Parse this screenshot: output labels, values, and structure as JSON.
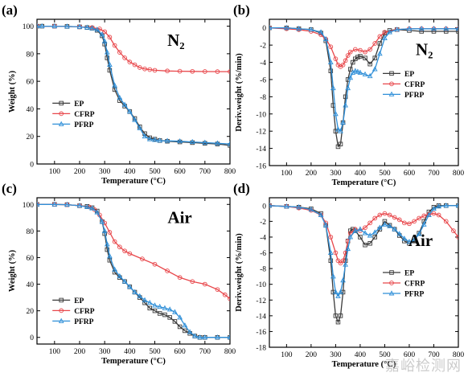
{
  "watermark": "嘉峪检测网",
  "chart_data": [
    {
      "type": "line",
      "panel": "(a)",
      "annotation": "N₂",
      "xlabel": "Temperature (°C)",
      "ylabel": "Weight (%)",
      "xlim": [
        30,
        800
      ],
      "ylim": [
        0,
        105
      ],
      "xticks": [
        100,
        200,
        300,
        400,
        500,
        600,
        700,
        800
      ],
      "yticks": [
        0,
        20,
        40,
        60,
        80,
        100
      ],
      "legend_position": "left",
      "series": [
        {
          "name": "EP",
          "color": "#3a3a3a",
          "marker": "square",
          "x": [
            30,
            50,
            100,
            150,
            200,
            230,
            250,
            270,
            290,
            300,
            310,
            320,
            340,
            360,
            380,
            400,
            420,
            440,
            460,
            480,
            500,
            520,
            550,
            600,
            650,
            700,
            750,
            800
          ],
          "y": [
            100,
            100,
            100,
            99.8,
            99.5,
            99,
            98.5,
            97,
            93,
            87,
            77,
            68,
            54,
            46,
            42,
            38,
            33,
            27,
            22,
            19,
            18,
            17,
            16.5,
            16,
            15.5,
            15,
            14.5,
            13.5
          ]
        },
        {
          "name": "CFRP",
          "color": "#e8474b",
          "marker": "circle",
          "x": [
            30,
            100,
            200,
            250,
            280,
            300,
            320,
            340,
            360,
            380,
            400,
            420,
            440,
            460,
            480,
            500,
            550,
            600,
            650,
            700,
            750,
            800
          ],
          "y": [
            100,
            100,
            99.5,
            99,
            98,
            96,
            92,
            86,
            81,
            77,
            74,
            72,
            70,
            69,
            68.5,
            68,
            67.5,
            67.3,
            67.2,
            67.1,
            67,
            67
          ]
        },
        {
          "name": "PFRP",
          "color": "#2f8fd8",
          "marker": "triangle",
          "x": [
            30,
            50,
            100,
            150,
            200,
            230,
            250,
            270,
            290,
            300,
            310,
            320,
            340,
            360,
            380,
            400,
            420,
            440,
            460,
            480,
            500,
            520,
            550,
            600,
            650,
            700,
            750,
            800
          ],
          "y": [
            100,
            100,
            100,
            99.8,
            99.5,
            99,
            98.5,
            97.5,
            94,
            89,
            81,
            72,
            57,
            48,
            43,
            38,
            32,
            26,
            20,
            18,
            17.5,
            17,
            16.8,
            16.5,
            16,
            15.5,
            15,
            14.5
          ]
        }
      ]
    },
    {
      "type": "line",
      "panel": "(b)",
      "annotation": "N₂",
      "xlabel": "Temperature (°C)",
      "ylabel": "Deriv.weight (%/min)",
      "xlim": [
        30,
        800
      ],
      "ylim": [
        -16,
        1
      ],
      "xticks": [
        100,
        200,
        300,
        400,
        500,
        600,
        700,
        800
      ],
      "yticks": [
        0,
        -2,
        -4,
        -6,
        -8,
        -10,
        -12,
        -14,
        -16
      ],
      "legend_position": "right",
      "series": [
        {
          "name": "EP",
          "color": "#3a3a3a",
          "marker": "square",
          "x": [
            30,
            100,
            150,
            200,
            240,
            260,
            280,
            290,
            300,
            310,
            320,
            330,
            340,
            350,
            360,
            370,
            380,
            390,
            400,
            420,
            440,
            460,
            480,
            500,
            520,
            550,
            600,
            650,
            700,
            750,
            800
          ],
          "y": [
            0,
            0,
            -0.1,
            -0.2,
            -0.6,
            -1.5,
            -5,
            -9,
            -12,
            -13.8,
            -13.5,
            -11,
            -8,
            -6,
            -4.8,
            -4,
            -3.6,
            -3.4,
            -3.3,
            -3.5,
            -4.2,
            -3.5,
            -1.8,
            -0.6,
            -0.3,
            -0.2,
            -0.3,
            -0.4,
            -0.4,
            -0.4,
            -0.4
          ]
        },
        {
          "name": "CFRP",
          "color": "#e8474b",
          "marker": "circle",
          "x": [
            30,
            100,
            150,
            200,
            240,
            260,
            280,
            300,
            310,
            320,
            330,
            340,
            350,
            360,
            380,
            400,
            420,
            440,
            460,
            480,
            500,
            550,
            600,
            650,
            700,
            750,
            800
          ],
          "y": [
            0,
            -0.1,
            -0.2,
            -0.4,
            -0.8,
            -1.3,
            -2.2,
            -3.6,
            -4.3,
            -4.5,
            -4.3,
            -3.8,
            -3.2,
            -2.8,
            -2.5,
            -2.6,
            -2.8,
            -2.5,
            -1.8,
            -1,
            -0.5,
            -0.2,
            -0.1,
            -0.1,
            -0.1,
            -0.1,
            -0.1
          ]
        },
        {
          "name": "PFRP",
          "color": "#2f8fd8",
          "marker": "triangle",
          "x": [
            30,
            100,
            150,
            200,
            240,
            260,
            280,
            290,
            300,
            310,
            320,
            330,
            340,
            350,
            360,
            370,
            380,
            390,
            400,
            420,
            440,
            460,
            480,
            500,
            520,
            550,
            600,
            650,
            700,
            750,
            800
          ],
          "y": [
            0,
            0,
            -0.1,
            -0.2,
            -0.5,
            -1.3,
            -4,
            -7,
            -10,
            -11.8,
            -12,
            -11,
            -9,
            -7,
            -5.8,
            -5.2,
            -5,
            -5.1,
            -5.2,
            -5.4,
            -5.6,
            -4.8,
            -3,
            -1.2,
            -0.5,
            -0.2,
            -0.1,
            -0.1,
            -0.1,
            -0.1,
            -0.1
          ]
        }
      ]
    },
    {
      "type": "line",
      "panel": "(c)",
      "annotation": "Air",
      "xlabel": "Temperature (°C)",
      "ylabel": "Weight (%)",
      "xlim": [
        30,
        800
      ],
      "ylim": [
        -5,
        105
      ],
      "xticks": [
        100,
        200,
        300,
        400,
        500,
        600,
        700,
        800
      ],
      "yticks": [
        0,
        20,
        40,
        60,
        80,
        100
      ],
      "legend_position": "left",
      "series": [
        {
          "name": "EP",
          "color": "#3a3a3a",
          "marker": "square",
          "x": [
            30,
            100,
            150,
            200,
            230,
            250,
            270,
            290,
            300,
            310,
            320,
            340,
            360,
            380,
            400,
            420,
            440,
            460,
            480,
            500,
            520,
            540,
            560,
            580,
            600,
            620,
            640,
            660,
            680,
            700,
            750,
            800
          ],
          "y": [
            100,
            100,
            99.8,
            99,
            98.5,
            97.5,
            95,
            87,
            78,
            66,
            58,
            49,
            45,
            42,
            38,
            34,
            30,
            26,
            22,
            20,
            18,
            17,
            15,
            12,
            8,
            5,
            3,
            1,
            0,
            0,
            0,
            0
          ]
        },
        {
          "name": "CFRP",
          "color": "#e8474b",
          "marker": "circle",
          "x": [
            30,
            100,
            150,
            200,
            240,
            260,
            280,
            300,
            320,
            340,
            360,
            380,
            400,
            450,
            500,
            550,
            600,
            650,
            700,
            750,
            780,
            800
          ],
          "y": [
            100,
            100,
            99.8,
            99,
            98,
            96,
            92,
            86,
            79,
            72,
            68,
            65,
            63,
            59,
            55,
            50,
            45,
            42,
            40,
            36,
            32,
            29
          ]
        },
        {
          "name": "PFRP",
          "color": "#2f8fd8",
          "marker": "triangle",
          "x": [
            30,
            100,
            150,
            200,
            230,
            250,
            270,
            290,
            300,
            310,
            320,
            340,
            360,
            380,
            400,
            420,
            440,
            460,
            480,
            500,
            520,
            540,
            560,
            580,
            600,
            620,
            640,
            660,
            680,
            700,
            750,
            800
          ],
          "y": [
            100,
            100,
            99.8,
            99,
            98,
            97,
            94,
            87,
            80,
            70,
            61,
            51,
            46,
            42,
            38,
            34,
            31,
            28,
            26,
            24,
            23,
            22,
            21,
            19,
            15,
            9,
            4,
            1,
            0,
            0,
            0,
            0
          ]
        }
      ]
    },
    {
      "type": "line",
      "panel": "(d)",
      "annotation": "Air",
      "xlabel": "Temperature (°C)",
      "ylabel": "Deriv.weight (%/min)",
      "xlim": [
        30,
        800
      ],
      "ylim": [
        -18,
        1
      ],
      "xticks": [
        100,
        200,
        300,
        400,
        500,
        600,
        700,
        800
      ],
      "yticks": [
        0,
        -2,
        -4,
        -6,
        -8,
        -10,
        -12,
        -14,
        -16,
        -18
      ],
      "legend_position": "center-right",
      "series": [
        {
          "name": "EP",
          "color": "#3a3a3a",
          "marker": "square",
          "x": [
            30,
            100,
            150,
            200,
            240,
            260,
            280,
            290,
            300,
            310,
            320,
            330,
            340,
            350,
            360,
            370,
            380,
            400,
            420,
            440,
            460,
            480,
            500,
            520,
            540,
            560,
            580,
            600,
            620,
            640,
            660,
            680,
            700,
            720,
            750,
            800
          ],
          "y": [
            0,
            -0.1,
            -0.2,
            -0.4,
            -1,
            -2.5,
            -7,
            -11,
            -14,
            -14.8,
            -14,
            -11,
            -7,
            -4.5,
            -3.2,
            -3,
            -3.2,
            -4,
            -5,
            -4.8,
            -4,
            -3,
            -2,
            -2.5,
            -3,
            -3.8,
            -4.5,
            -4.8,
            -4.5,
            -3.5,
            -2,
            -0.8,
            -0.2,
            0,
            0,
            0
          ]
        },
        {
          "name": "CFRP",
          "color": "#e8474b",
          "marker": "circle",
          "x": [
            30,
            100,
            150,
            200,
            240,
            260,
            280,
            300,
            310,
            320,
            330,
            340,
            350,
            360,
            380,
            400,
            420,
            440,
            460,
            480,
            500,
            520,
            540,
            560,
            580,
            600,
            620,
            640,
            660,
            680,
            700,
            720,
            750,
            780,
            800
          ],
          "y": [
            0,
            -0.1,
            -0.3,
            -0.6,
            -1.2,
            -2.2,
            -4,
            -6,
            -7,
            -7.3,
            -7,
            -6,
            -4.5,
            -3.5,
            -3,
            -3.2,
            -2.8,
            -2.2,
            -1.6,
            -1.2,
            -1,
            -1.2,
            -1.5,
            -1.8,
            -2.2,
            -2.3,
            -2,
            -1.6,
            -1.3,
            -1.1,
            -1,
            -1.2,
            -2,
            -3.2,
            -4
          ]
        },
        {
          "name": "PFRP",
          "color": "#2f8fd8",
          "marker": "triangle",
          "x": [
            30,
            100,
            150,
            200,
            240,
            260,
            280,
            290,
            300,
            310,
            320,
            330,
            340,
            350,
            360,
            380,
            400,
            420,
            440,
            460,
            480,
            500,
            520,
            540,
            560,
            580,
            600,
            620,
            640,
            660,
            680,
            700,
            720,
            750,
            800
          ],
          "y": [
            0,
            -0.1,
            -0.2,
            -0.5,
            -1.2,
            -2.5,
            -6,
            -9,
            -11,
            -11.5,
            -11,
            -9.5,
            -7.5,
            -5.5,
            -4,
            -3.2,
            -3,
            -3.5,
            -3.8,
            -3.4,
            -2.8,
            -2.4,
            -2.6,
            -3,
            -3.6,
            -4.2,
            -4.6,
            -4.4,
            -3.6,
            -2.4,
            -1.2,
            -0.4,
            -0.1,
            0,
            0
          ]
        }
      ]
    }
  ]
}
